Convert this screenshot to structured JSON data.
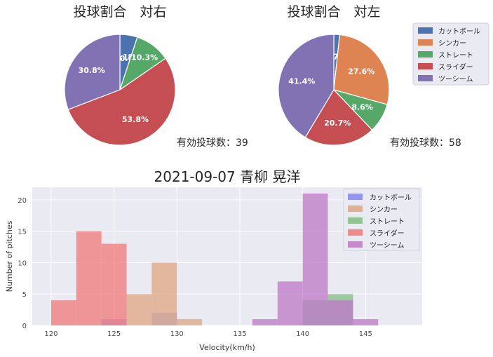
{
  "chart_data": [
    {
      "type": "pie",
      "title": "投球割合　対右",
      "note": "有効投球数：39",
      "labels": [
        "カットボール",
        "シンカー",
        "ストレート",
        "スライダー",
        "ツーシーム"
      ],
      "values": [
        5.1,
        0.0,
        10.3,
        53.8,
        30.8
      ],
      "value_labels": [
        "5.1%",
        "0.0%",
        "10.3%",
        "53.8%",
        "30.8%"
      ],
      "colors": [
        "#4c72b0",
        "#dd8452",
        "#55a868",
        "#c44e52",
        "#8172b3"
      ]
    },
    {
      "type": "pie",
      "title": "投球割合　対左",
      "note": "有効投球数：58",
      "labels": [
        "カットボール",
        "シンカー",
        "ストレート",
        "スライダー",
        "ツーシーム"
      ],
      "values": [
        1.7,
        27.6,
        8.6,
        20.7,
        41.4
      ],
      "value_labels": [
        "1.7%",
        "27.6%",
        "8.6%",
        "20.7%",
        "41.4%"
      ],
      "colors": [
        "#4c72b0",
        "#dd8452",
        "#55a868",
        "#c44e52",
        "#8172b3"
      ],
      "legend": {
        "placement": "outside-right",
        "entries": [
          "カットボール",
          "シンカー",
          "ストレート",
          "スライダー",
          "ツーシーム"
        ]
      }
    },
    {
      "type": "bar",
      "subtype": "histogram",
      "title": "2021-09-07 青柳 晃洋",
      "xlabel": "Velocity(km/h)",
      "ylabel": "Number of pitches",
      "xlim": [
        118.5,
        149.5
      ],
      "ylim": [
        0,
        22
      ],
      "xticks": [
        120,
        125,
        130,
        135,
        140,
        145
      ],
      "yticks": [
        0,
        5,
        10,
        15,
        20
      ],
      "bin_width": 2,
      "grid": true,
      "legend": {
        "placement": "top-right"
      },
      "series": [
        {
          "name": "カットボール",
          "color": "#8c8cf0",
          "bins": [
            {
              "x0": 124,
              "x1": 126,
              "count": 1
            },
            {
              "x0": 128,
              "x1": 130,
              "count": 2
            },
            {
              "x0": 140,
              "x1": 142,
              "count": 4
            },
            {
              "x0": 142,
              "x1": 144,
              "count": 4
            }
          ]
        },
        {
          "name": "シンカー",
          "color": "#e0aa88",
          "bins": [
            {
              "x0": 126,
              "x1": 128,
              "count": 5
            },
            {
              "x0": 128,
              "x1": 130,
              "count": 10
            },
            {
              "x0": 130,
              "x1": 132,
              "count": 1
            }
          ]
        },
        {
          "name": "ストレート",
          "color": "#88c088",
          "bins": [
            {
              "x0": 140,
              "x1": 142,
              "count": 4
            },
            {
              "x0": 142,
              "x1": 144,
              "count": 5
            }
          ]
        },
        {
          "name": "スライダー",
          "color": "#f08080",
          "bins": [
            {
              "x0": 120,
              "x1": 122,
              "count": 4
            },
            {
              "x0": 122,
              "x1": 124,
              "count": 15
            },
            {
              "x0": 124,
              "x1": 126,
              "count": 13
            }
          ]
        },
        {
          "name": "ツーシーム",
          "color": "#c080c8",
          "bins": [
            {
              "x0": 136,
              "x1": 138,
              "count": 1
            },
            {
              "x0": 138,
              "x1": 140,
              "count": 7
            },
            {
              "x0": 140,
              "x1": 142,
              "count": 21
            },
            {
              "x0": 142,
              "x1": 144,
              "count": 4
            },
            {
              "x0": 144,
              "x1": 146,
              "count": 1
            }
          ]
        }
      ]
    }
  ]
}
